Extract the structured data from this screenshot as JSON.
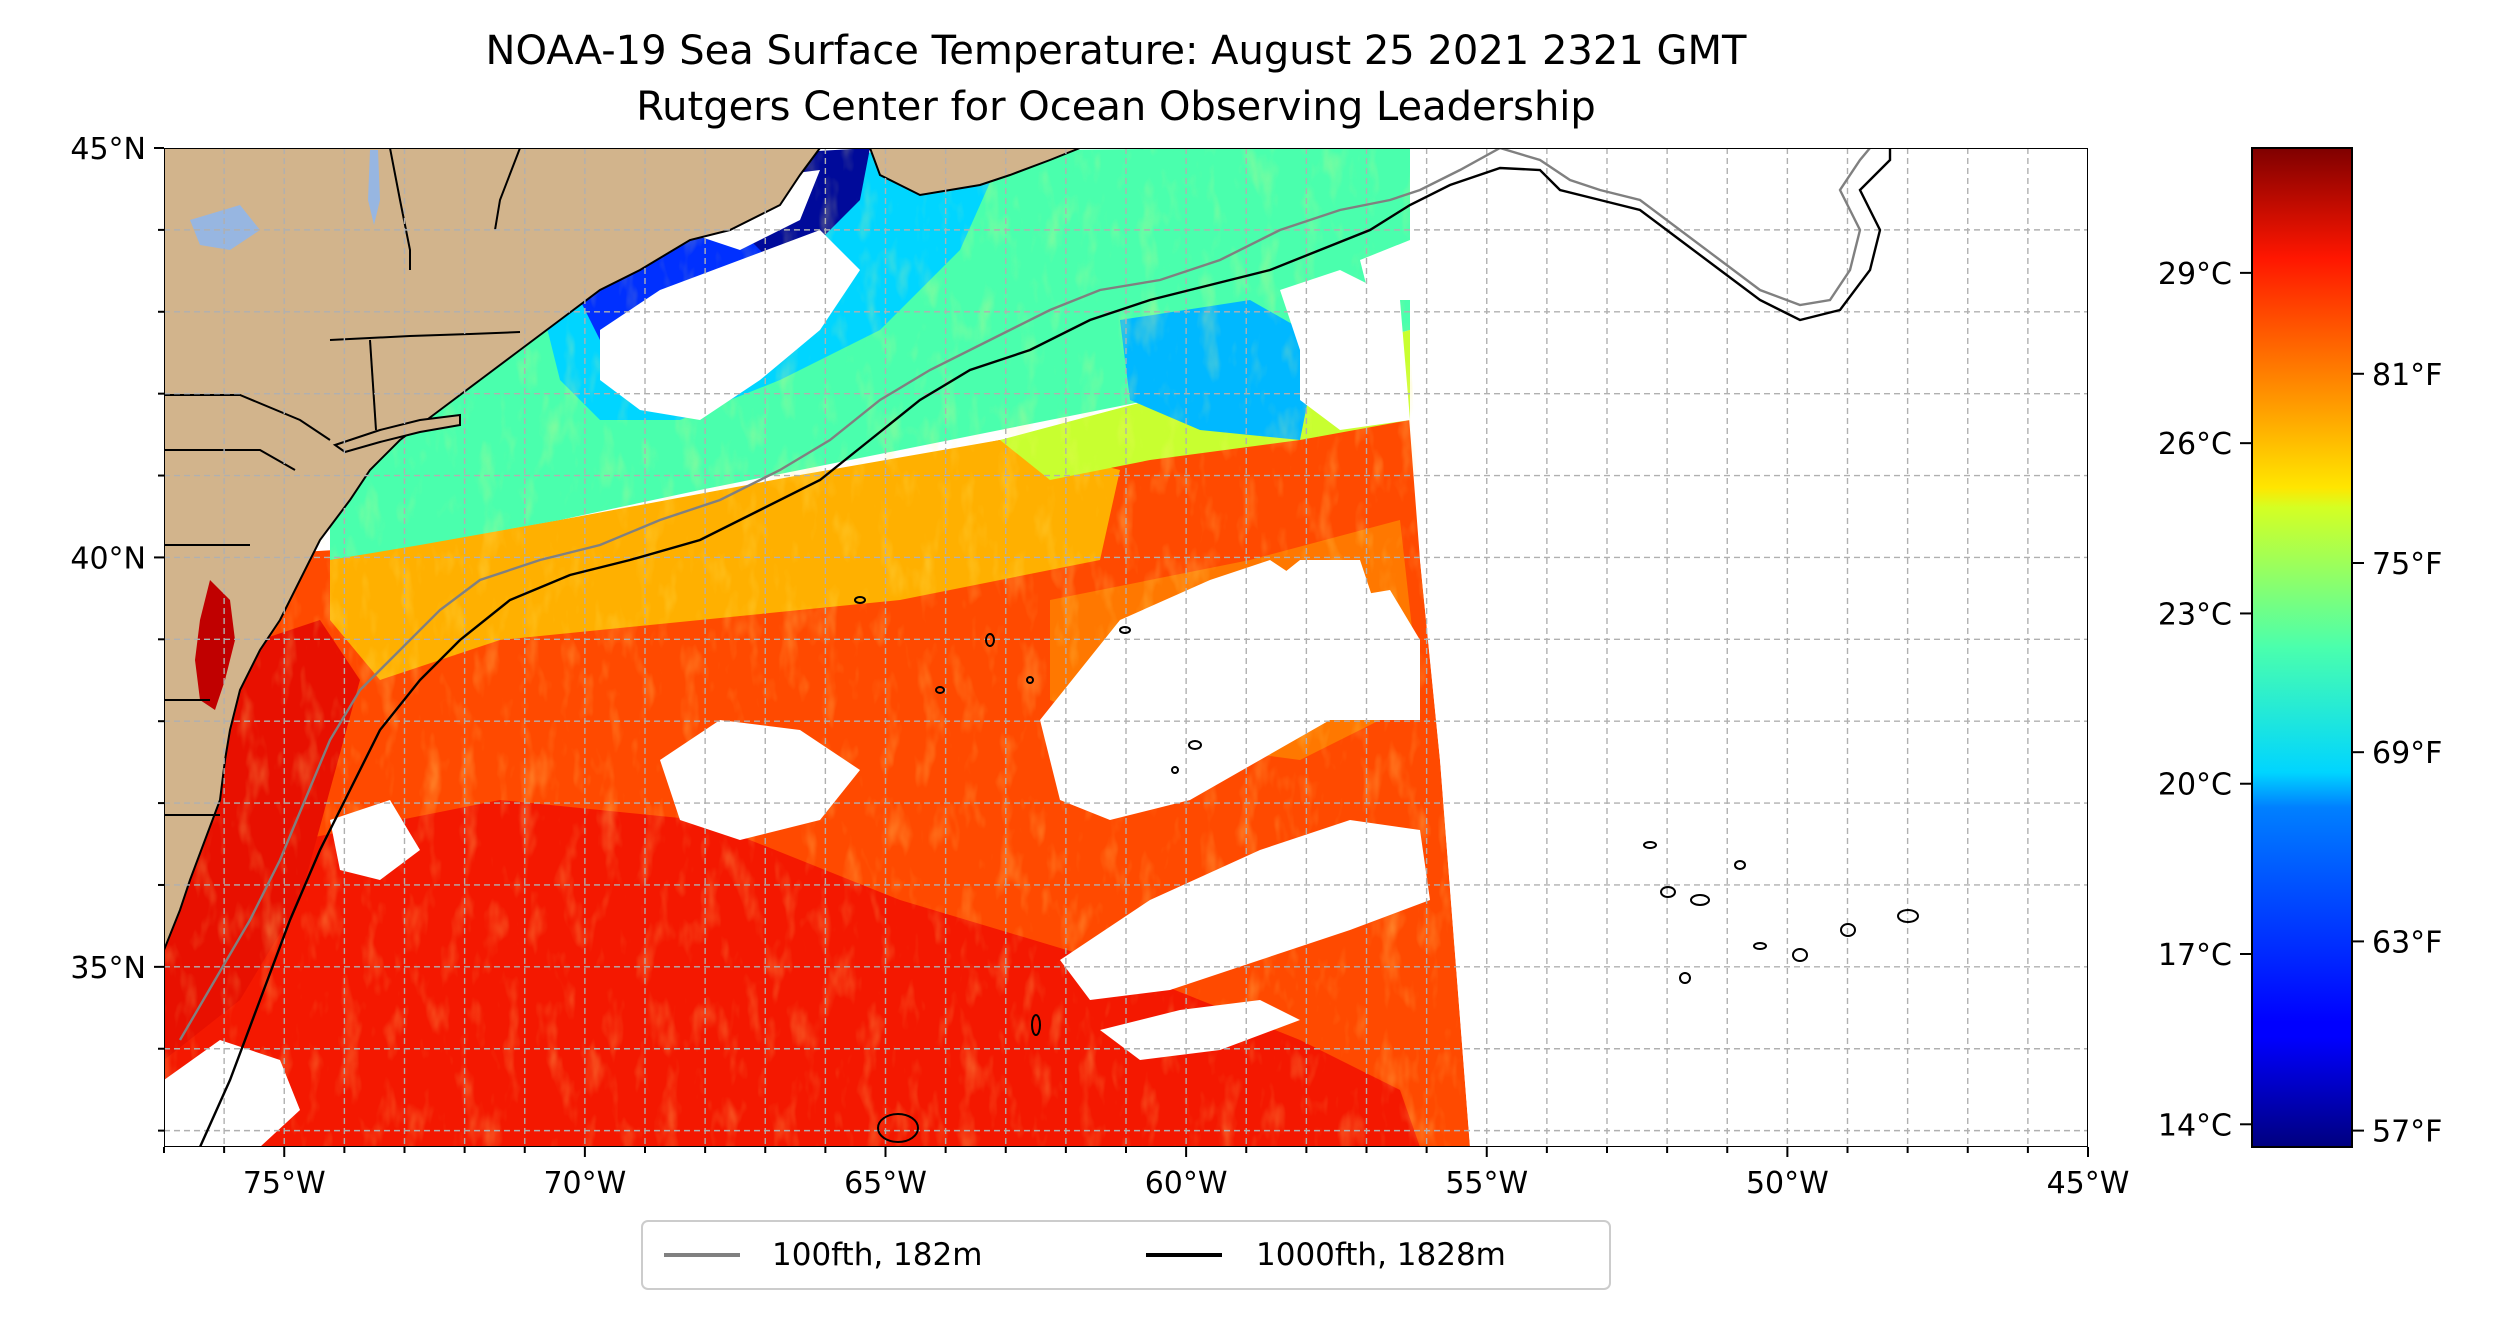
{
  "title": {
    "line1": "NOAA-19 Sea Surface Temperature: August 25 2021 2321 GMT",
    "line2": "Rutgers Center for Ocean Observing Leadership"
  },
  "map": {
    "lon_range": [
      -77,
      -45
    ],
    "lat_range": [
      32.8,
      45
    ],
    "x_ticks": [
      {
        "lon": -75,
        "label": "75°W"
      },
      {
        "lon": -70,
        "label": "70°W"
      },
      {
        "lon": -65,
        "label": "65°W"
      },
      {
        "lon": -60,
        "label": "60°W"
      },
      {
        "lon": -55,
        "label": "55°W"
      },
      {
        "lon": -50,
        "label": "50°W"
      },
      {
        "lon": -45,
        "label": "45°W"
      }
    ],
    "y_ticks": [
      {
        "lat": 45,
        "label": "45°N"
      },
      {
        "lat": 40,
        "label": "40°N"
      },
      {
        "lat": 35,
        "label": "35°N"
      }
    ],
    "grid_step_deg": 1,
    "grid": true,
    "land_color": "#d2b48c",
    "lake_color": "#97b6e1",
    "cloud_color": "#ffffff"
  },
  "colorbar": {
    "colormap": "jet",
    "celsius_range": [
      13.6,
      31.2
    ],
    "celsius_ticks": [
      {
        "value": 14,
        "label": "14°C"
      },
      {
        "value": 17,
        "label": "17°C"
      },
      {
        "value": 20,
        "label": "20°C"
      },
      {
        "value": 23,
        "label": "23°C"
      },
      {
        "value": 26,
        "label": "26°C"
      },
      {
        "value": 29,
        "label": "29°C"
      }
    ],
    "fahrenheit_ticks": [
      {
        "value": 57,
        "label": "57°F"
      },
      {
        "value": 63,
        "label": "63°F"
      },
      {
        "value": 69,
        "label": "69°F"
      },
      {
        "value": 75,
        "label": "75°F"
      },
      {
        "value": 81,
        "label": "81°F"
      }
    ]
  },
  "legend": {
    "entries": [
      {
        "label": "100fth, 182m",
        "color": "#808080"
      },
      {
        "label": "1000fth, 1828m",
        "color": "#000000"
      }
    ]
  }
}
